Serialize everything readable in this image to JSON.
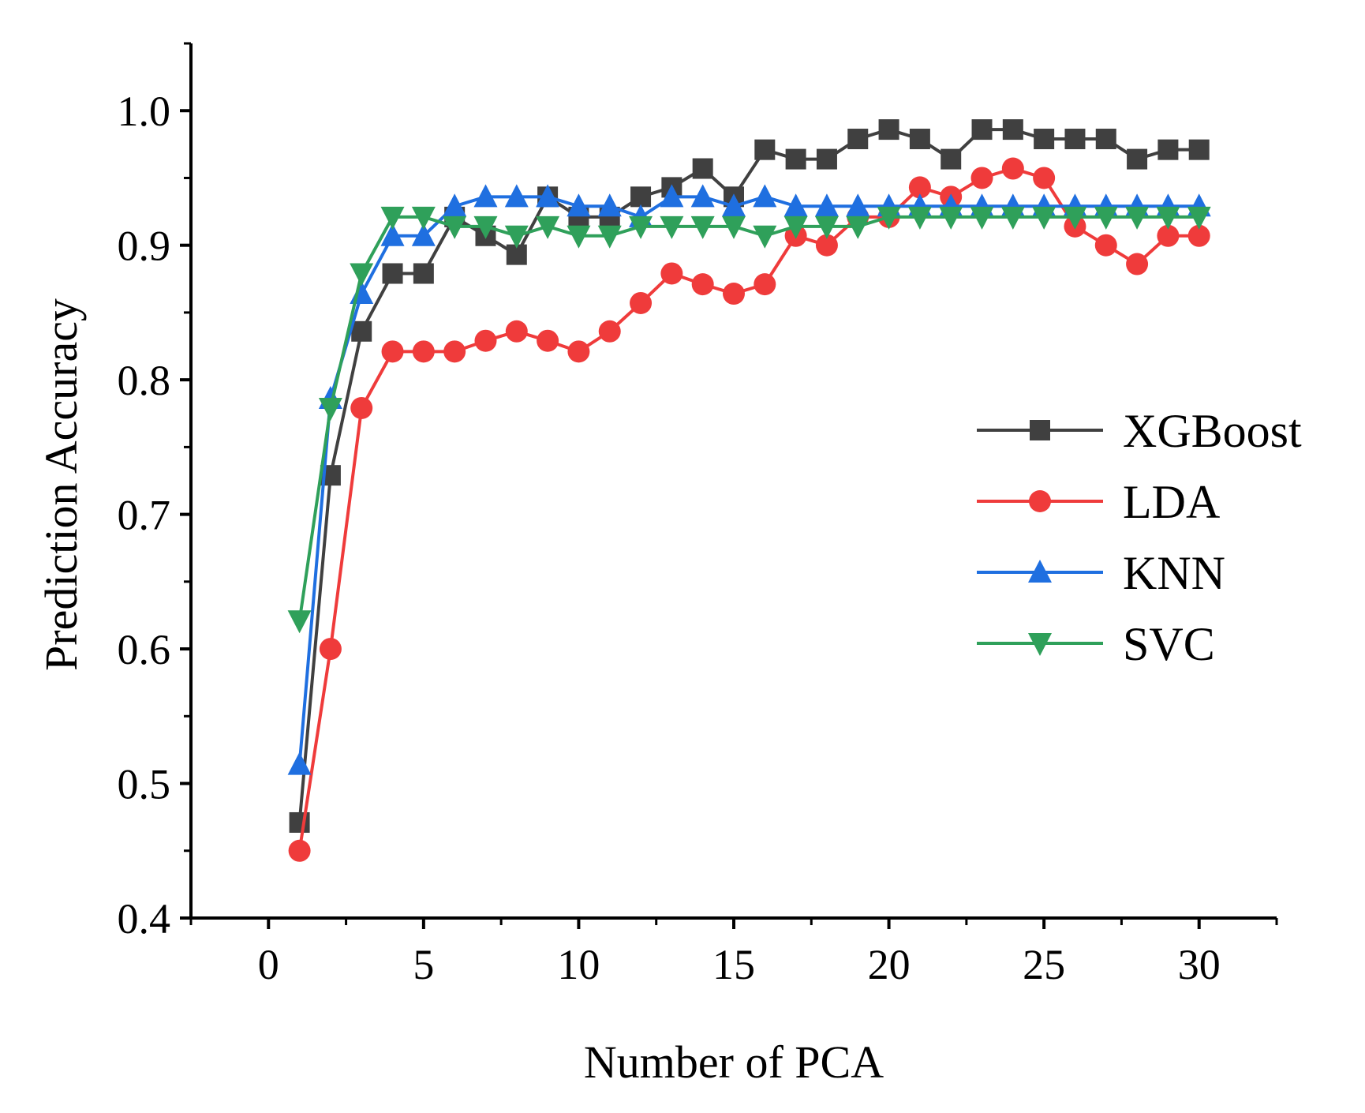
{
  "chart_data": {
    "type": "line",
    "title": "",
    "xlabel": "Number of PCA",
    "ylabel": "Prediction Accuracy",
    "xlim": [
      -2.5,
      32.5
    ],
    "ylim": [
      0.4,
      1.05
    ],
    "xticks": [
      0,
      5,
      10,
      15,
      20,
      25,
      30
    ],
    "xtick_labels": [
      "0",
      "5",
      "10",
      "15",
      "20",
      "25",
      "30"
    ],
    "yticks": [
      0.4,
      0.5,
      0.6,
      0.7,
      0.8,
      0.9,
      1.0
    ],
    "ytick_labels": [
      "0.4",
      "0.5",
      "0.6",
      "0.7",
      "0.8",
      "0.9",
      "1.0"
    ],
    "grid": false,
    "legend_position": "center-right",
    "x": [
      1,
      2,
      3,
      4,
      5,
      6,
      7,
      8,
      9,
      10,
      11,
      12,
      13,
      14,
      15,
      16,
      17,
      18,
      19,
      20,
      21,
      22,
      23,
      24,
      25,
      26,
      27,
      28,
      29,
      30
    ],
    "series": [
      {
        "name": "XGBoost",
        "color": "#404040",
        "marker": "square",
        "values": [
          0.471,
          0.729,
          0.836,
          0.879,
          0.879,
          0.921,
          0.907,
          0.893,
          0.936,
          0.921,
          0.921,
          0.936,
          0.943,
          0.957,
          0.936,
          0.971,
          0.964,
          0.964,
          0.979,
          0.986,
          0.979,
          0.964,
          0.986,
          0.986,
          0.979,
          0.979,
          0.979,
          0.964,
          0.971,
          0.971
        ]
      },
      {
        "name": "LDA",
        "color": "#ef3b3b",
        "marker": "circle",
        "values": [
          0.45,
          0.6,
          0.779,
          0.821,
          0.821,
          0.821,
          0.829,
          0.836,
          0.829,
          0.821,
          0.836,
          0.857,
          0.879,
          0.871,
          0.864,
          0.871,
          0.907,
          0.9,
          0.921,
          0.921,
          0.943,
          0.936,
          0.95,
          0.957,
          0.95,
          0.914,
          0.9,
          0.886,
          0.907,
          0.907
        ]
      },
      {
        "name": "KNN",
        "color": "#1f6fe0",
        "marker": "triangle-up",
        "values": [
          0.514,
          0.786,
          0.864,
          0.907,
          0.907,
          0.929,
          0.936,
          0.936,
          0.936,
          0.929,
          0.929,
          0.921,
          0.936,
          0.936,
          0.929,
          0.936,
          0.929,
          0.929,
          0.929,
          0.929,
          0.929,
          0.929,
          0.929,
          0.929,
          0.929,
          0.929,
          0.929,
          0.929,
          0.929,
          0.929
        ]
      },
      {
        "name": "SVC",
        "color": "#2fa05a",
        "marker": "triangle-down",
        "values": [
          0.621,
          0.779,
          0.879,
          0.921,
          0.921,
          0.914,
          0.914,
          0.907,
          0.914,
          0.907,
          0.907,
          0.914,
          0.914,
          0.914,
          0.914,
          0.907,
          0.914,
          0.914,
          0.914,
          0.921,
          0.921,
          0.921,
          0.921,
          0.921,
          0.921,
          0.921,
          0.921,
          0.921,
          0.921,
          0.921
        ]
      }
    ]
  }
}
